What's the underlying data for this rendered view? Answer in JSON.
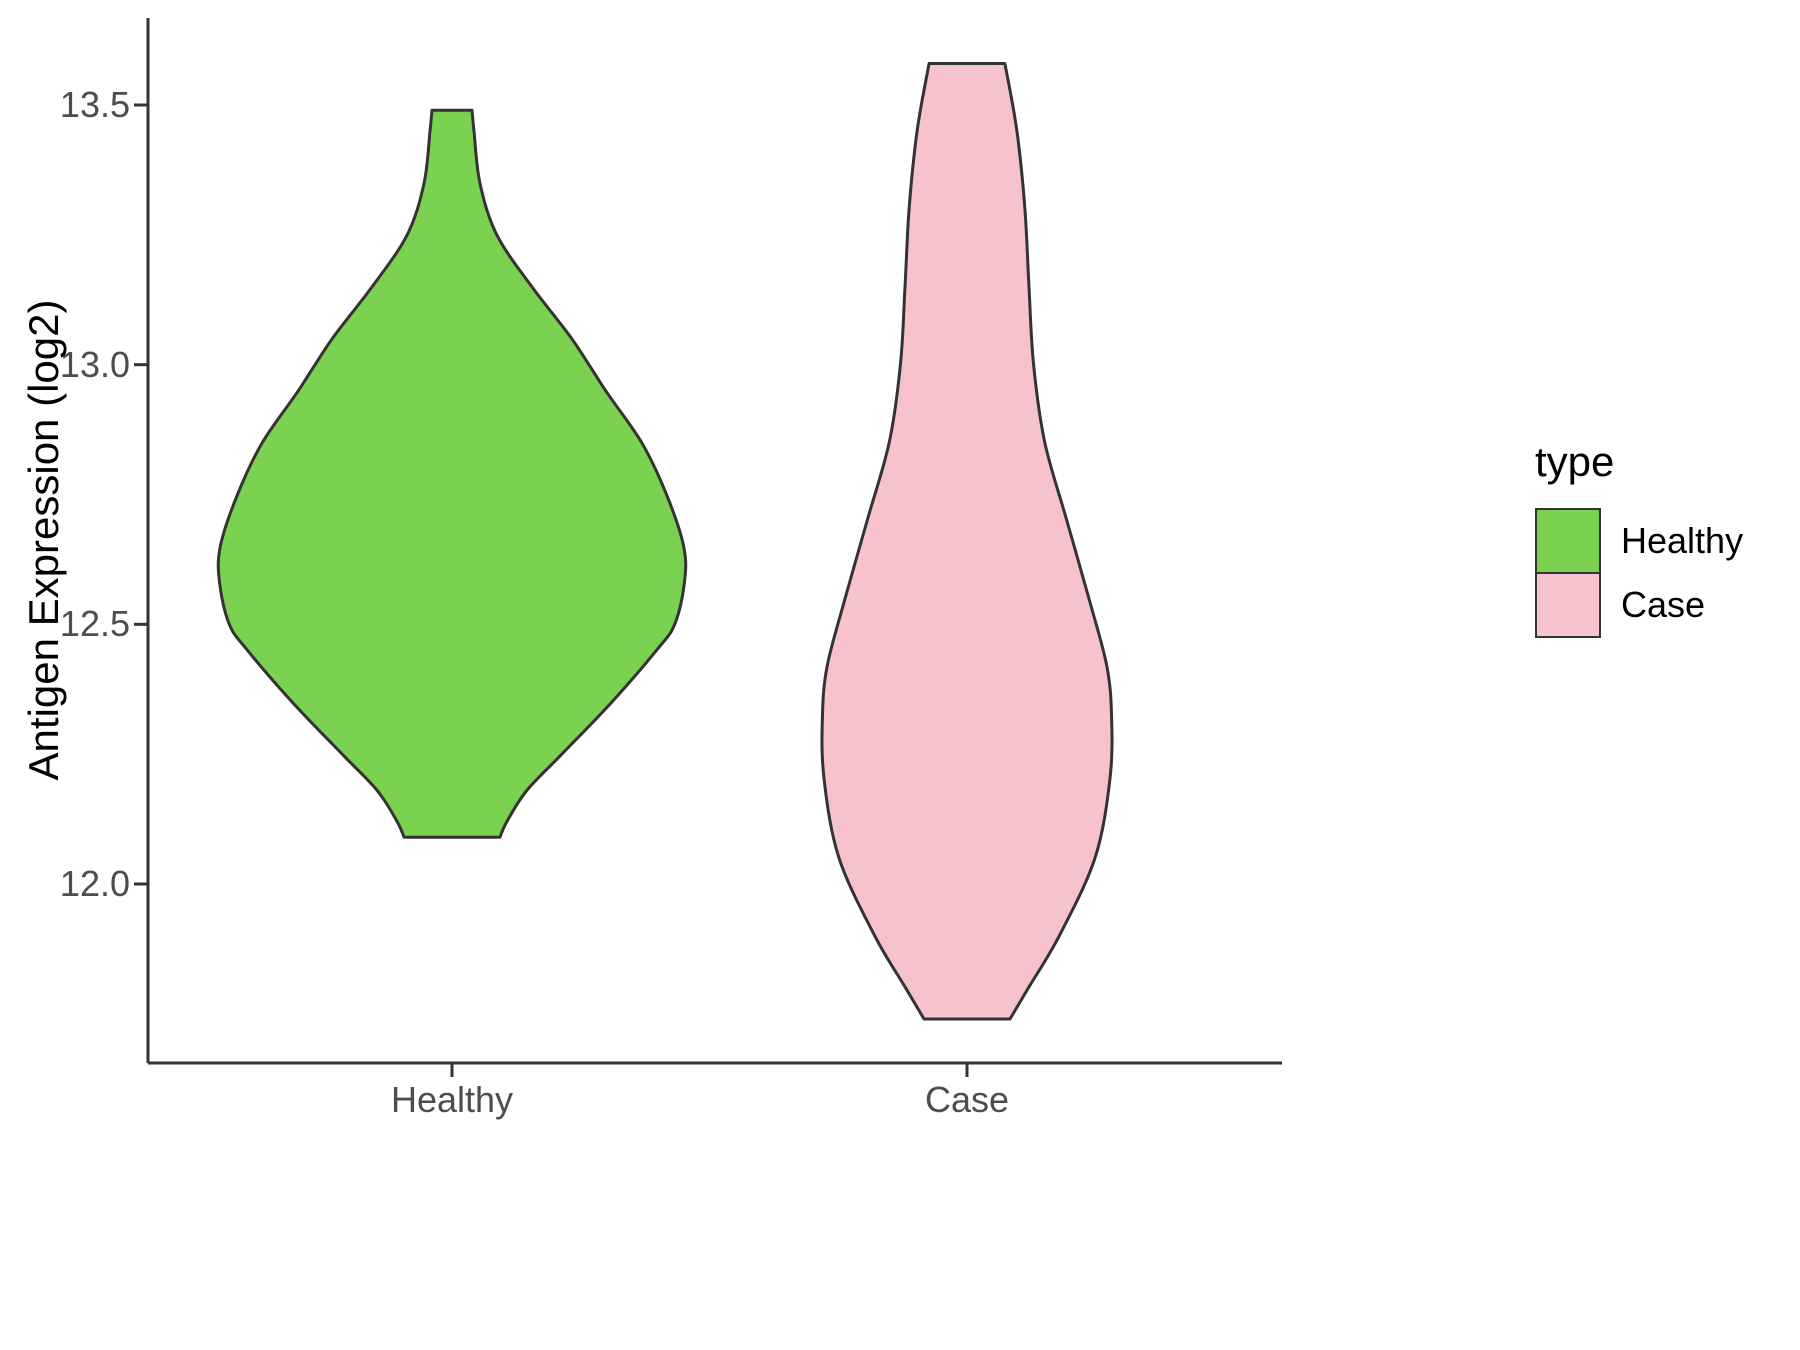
{
  "chart_data": {
    "type": "violin",
    "title": "",
    "xlabel": "",
    "ylabel": "Antigen Expression (log2)",
    "categories": [
      "Healthy",
      "Case"
    ],
    "ylim": [
      11.66,
      13.66
    ],
    "yticks": [
      12.0,
      12.5,
      13.0,
      13.5
    ],
    "ytick_labels": [
      "12.0",
      "12.5",
      "13.0",
      "13.5"
    ],
    "grid": false,
    "axis_color": "#333333",
    "tick_label_color": "#4d4d4d",
    "legend": {
      "title": "type",
      "position": "right",
      "items": [
        {
          "label": "Healthy",
          "color": "#7bd250"
        },
        {
          "label": "Case",
          "color": "#f6c3cd"
        }
      ]
    },
    "series": [
      {
        "name": "Healthy",
        "fill": "#7bd250",
        "outline": "#333333",
        "value_range": [
          12.09,
          13.49
        ],
        "profile": [
          [
            13.49,
            0.078
          ],
          [
            13.45,
            0.086
          ],
          [
            13.35,
            0.109
          ],
          [
            13.25,
            0.175
          ],
          [
            13.15,
            0.312
          ],
          [
            13.05,
            0.468
          ],
          [
            12.95,
            0.6
          ],
          [
            12.85,
            0.741
          ],
          [
            12.75,
            0.838
          ],
          [
            12.65,
            0.905
          ],
          [
            12.58,
            0.908
          ],
          [
            12.5,
            0.87
          ],
          [
            12.45,
            0.799
          ],
          [
            12.35,
            0.624
          ],
          [
            12.25,
            0.429
          ],
          [
            12.18,
            0.292
          ],
          [
            12.12,
            0.214
          ],
          [
            12.09,
            0.187
          ]
        ]
      },
      {
        "name": "Case",
        "fill": "#f6c3cd",
        "outline": "#333333",
        "value_range": [
          11.74,
          13.58
        ],
        "profile": [
          [
            13.58,
            0.148
          ],
          [
            13.45,
            0.195
          ],
          [
            13.3,
            0.226
          ],
          [
            13.15,
            0.242
          ],
          [
            13.0,
            0.26
          ],
          [
            12.85,
            0.304
          ],
          [
            12.7,
            0.39
          ],
          [
            12.55,
            0.476
          ],
          [
            12.42,
            0.546
          ],
          [
            12.32,
            0.565
          ],
          [
            12.2,
            0.558
          ],
          [
            12.05,
            0.5
          ],
          [
            11.9,
            0.36
          ],
          [
            11.8,
            0.24
          ],
          [
            11.74,
            0.168
          ]
        ]
      }
    ]
  }
}
